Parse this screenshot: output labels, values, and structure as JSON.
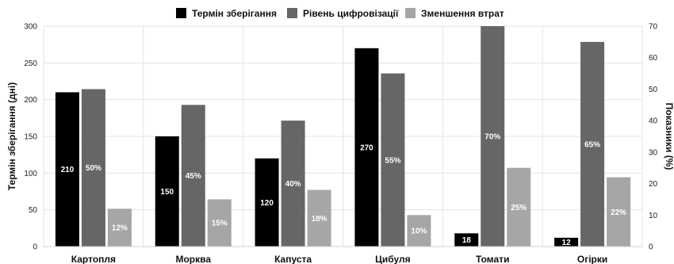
{
  "chart_data": {
    "type": "bar",
    "categories": [
      "Картопля",
      "Морква",
      "Капуста",
      "Цибуля",
      "Томати",
      "Огірки"
    ],
    "series": [
      {
        "name": "Термін зберігання",
        "axis": "left",
        "color": "#000000",
        "unit": "",
        "values": [
          210,
          150,
          120,
          270,
          18,
          12
        ]
      },
      {
        "name": "Рівень цифровізації",
        "axis": "right",
        "color": "#666666",
        "unit": "%",
        "values": [
          50,
          45,
          40,
          55,
          70,
          65
        ]
      },
      {
        "name": "Зменшення втрат",
        "axis": "right",
        "color": "#a6a6a6",
        "unit": "%",
        "values": [
          12,
          15,
          18,
          10,
          25,
          22
        ]
      }
    ],
    "ylabel": "Термін зберігання (дні)",
    "ylabel_right": "Показники (%)",
    "ylim": [
      0,
      300
    ],
    "ylim_right": [
      0,
      70
    ],
    "yticks": [
      0,
      50,
      100,
      150,
      200,
      250,
      300
    ],
    "yticks_right": [
      0,
      10,
      20,
      30,
      40,
      50,
      60,
      70
    ],
    "grid": true,
    "legend_position": "top-center"
  }
}
